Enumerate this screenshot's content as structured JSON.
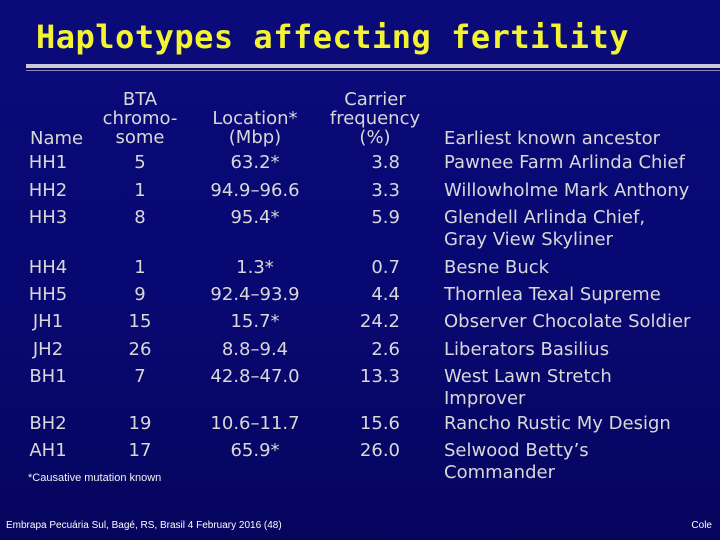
{
  "title": "Haplotypes affecting fertility",
  "headers": {
    "name": "Name",
    "bta": "BTA\nchromo-\nsome",
    "location": "Location*\n(Mbp)",
    "carrier": "Carrier\nfrequency\n(%)",
    "ancestor": "Earliest known ancestor"
  },
  "rows": [
    {
      "name": "HH1",
      "bta": "5",
      "location": "63.2*",
      "carrier": "3.8",
      "ancestor": "Pawnee Farm Arlinda Chief"
    },
    {
      "name": "HH2",
      "bta": "1",
      "location": "94.9–96.6",
      "carrier": "3.3",
      "ancestor": "Willowholme Mark Anthony"
    },
    {
      "name": "HH3",
      "bta": "8",
      "location": "95.4*",
      "carrier": "5.9",
      "ancestor": "Glendell Arlinda Chief,\nGray View Skyliner"
    },
    {
      "name": "HH4",
      "bta": "1",
      "location": "1.3*",
      "carrier": "0.7",
      "ancestor": "Besne Buck"
    },
    {
      "name": "HH5",
      "bta": "9",
      "location": "92.4–93.9",
      "carrier": "4.4",
      "ancestor": "Thornlea Texal Supreme"
    },
    {
      "name": "JH1",
      "bta": "15",
      "location": "15.7*",
      "carrier": "24.2",
      "ancestor": "Observer Chocolate Soldier"
    },
    {
      "name": "JH2",
      "bta": "26",
      "location": "8.8–9.4",
      "carrier": "2.6",
      "ancestor": "Liberators Basilius"
    },
    {
      "name": "BH1",
      "bta": "7",
      "location": "42.8–47.0",
      "carrier": "13.3",
      "ancestor": "West Lawn Stretch\nImprover"
    },
    {
      "name": "BH2",
      "bta": "19",
      "location": "10.6–11.7",
      "carrier": "15.6",
      "ancestor": "Rancho Rustic My Design"
    },
    {
      "name": "AH1",
      "bta": "17",
      "location": "65.9*",
      "carrier": "26.0",
      "ancestor": "Selwood Betty’s\nCommander"
    }
  ],
  "footnote": "*Causative mutation known",
  "footer": {
    "left": "Embrapa Pecuária Sul, Bagé, RS, Brasil 4 February 2016 (48)",
    "right": "Cole"
  },
  "colors": {
    "background": "#0a0a7a",
    "title": "#f3f331",
    "text": "#d8d8d8"
  }
}
